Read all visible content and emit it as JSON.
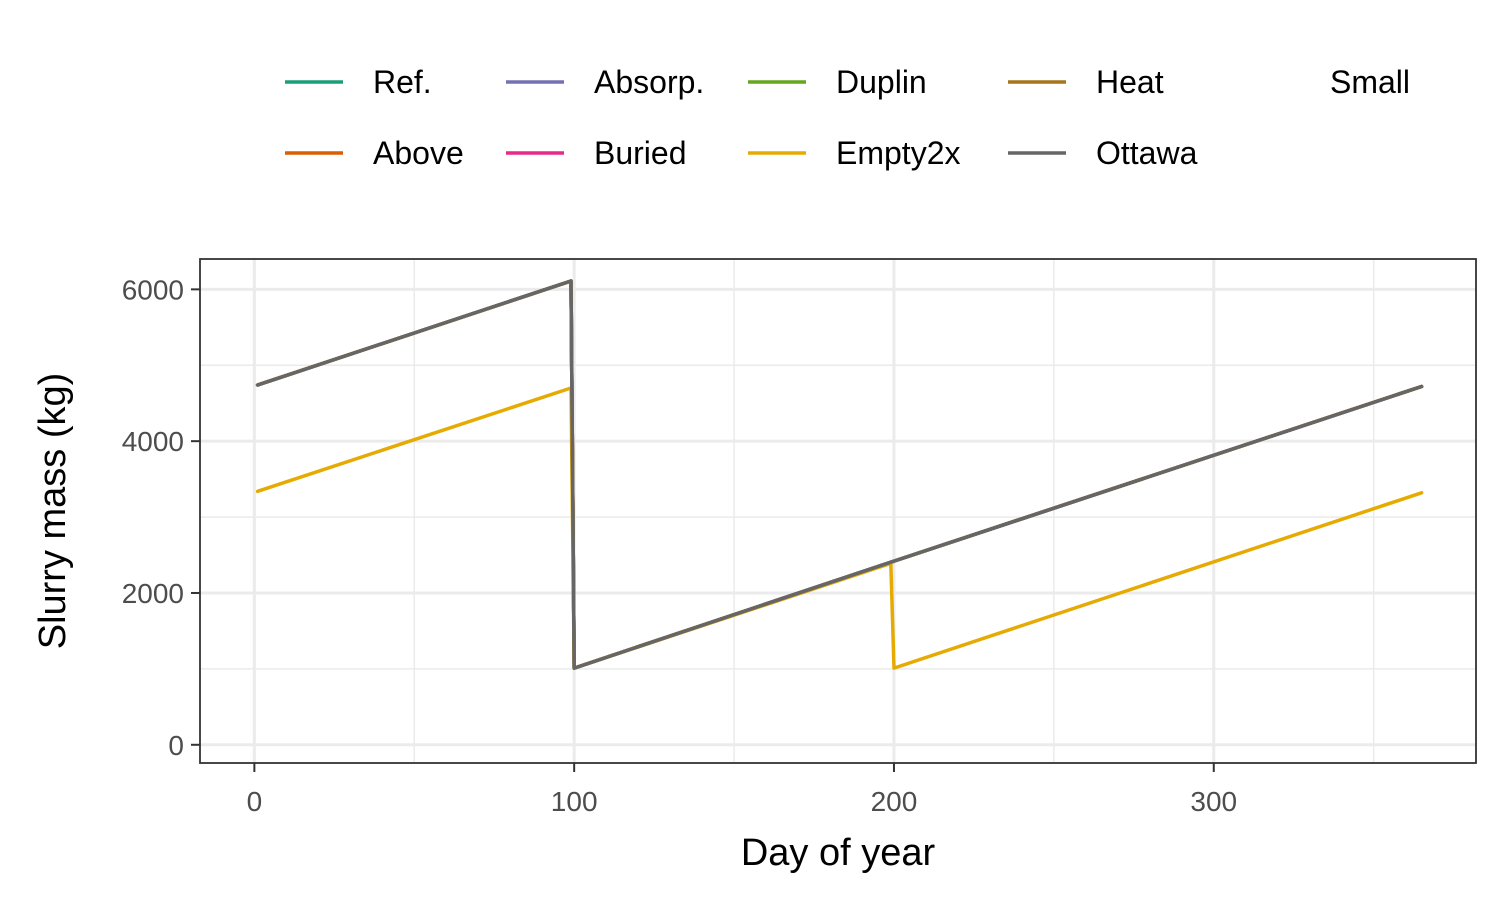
{
  "chart_data": {
    "type": "line",
    "xlabel": "Day of year",
    "ylabel": "Slurry mass (kg)",
    "xlim": [
      -17,
      382
    ],
    "ylim": [
      -240,
      6400
    ],
    "x_ticks": [
      0,
      100,
      200,
      300
    ],
    "x_minor_ticks": [
      50,
      150,
      250,
      350
    ],
    "y_ticks": [
      0,
      2000,
      4000,
      6000
    ],
    "y_minor_ticks": [
      1000,
      3000,
      5000
    ],
    "grid": true,
    "legend_position": "top",
    "series": [
      {
        "name": "Ref.",
        "color": "#1B9E77",
        "x": [
          1,
          99,
          100,
          200,
          365
        ],
        "y": [
          4740,
          6110,
          1010,
          2420,
          4720
        ]
      },
      {
        "name": "Above",
        "color": "#D95F02",
        "x": [
          1,
          99,
          100,
          200,
          365
        ],
        "y": [
          4740,
          6110,
          1010,
          2420,
          4720
        ]
      },
      {
        "name": "Absorp.",
        "color": "#7570B3",
        "x": [
          1,
          99,
          100,
          200,
          365
        ],
        "y": [
          4740,
          6110,
          1010,
          2420,
          4720
        ]
      },
      {
        "name": "Buried",
        "color": "#E7298A",
        "x": [
          1,
          99,
          100,
          200,
          365
        ],
        "y": [
          4740,
          6110,
          1010,
          2420,
          4720
        ]
      },
      {
        "name": "Duplin",
        "color": "#66A61E",
        "x": [
          1,
          99,
          100,
          200,
          365
        ],
        "y": [
          4740,
          6110,
          1010,
          2420,
          4720
        ]
      },
      {
        "name": "Empty2x",
        "color": "#E6AB02",
        "x": [
          1,
          99,
          100,
          199,
          200,
          365
        ],
        "y": [
          3340,
          4700,
          1010,
          2390,
          1010,
          3320
        ]
      },
      {
        "name": "Heat",
        "color": "#A6761D",
        "x": [
          1,
          99,
          100,
          200,
          365
        ],
        "y": [
          4740,
          6110,
          1010,
          2420,
          4720
        ]
      },
      {
        "name": "Ottawa",
        "color": "#666666",
        "x": [
          1,
          99,
          100,
          200,
          365
        ],
        "y": [
          4740,
          6110,
          1010,
          2420,
          4720
        ]
      },
      {
        "name": "Small",
        "color": "",
        "x": [],
        "y": []
      }
    ]
  }
}
